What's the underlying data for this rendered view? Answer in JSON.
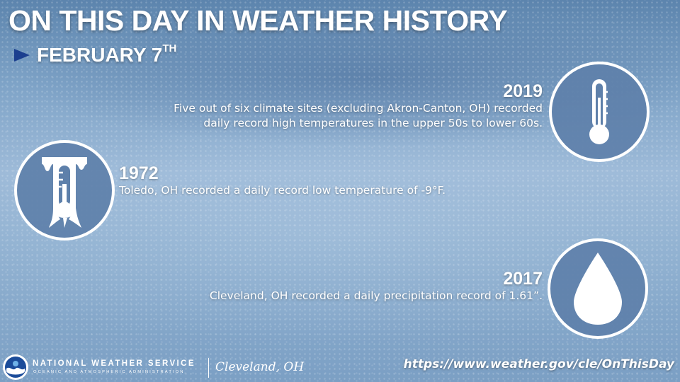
{
  "header": {
    "title": "ON THIS DAY IN WEATHER HISTORY",
    "date": "FEBRUARY 7",
    "date_suffix": "TH"
  },
  "events": [
    {
      "year": "2019",
      "description_line1": "Five out of six climate sites (excluding Akron-Canton, OH) recorded",
      "description_line2": "daily record high temperatures in the upper 50s to lower 60s.",
      "icon": "thermometer-icon"
    },
    {
      "year": "1972",
      "description": "Toledo, OH recorded a daily record low temperature of -9°F.",
      "icon": "frozen-thermometer-icon"
    },
    {
      "year": "2017",
      "description": "Cleveland, OH recorded a daily precipitation record of 1.61”.",
      "icon": "raindrop-icon"
    }
  ],
  "footer": {
    "agency_name": "NATIONAL WEATHER SERVICE",
    "agency_subtitle": "OCEANIC AND ATMOSPHERIC ADMINISTRATION",
    "office": "Cleveland, OH",
    "url": "https://www.weather.gov/cle/OnThisDay"
  },
  "colors": {
    "accent_arrow": "#1c3f8f",
    "circle_fill": "#5e80aa",
    "text": "#ffffff"
  }
}
